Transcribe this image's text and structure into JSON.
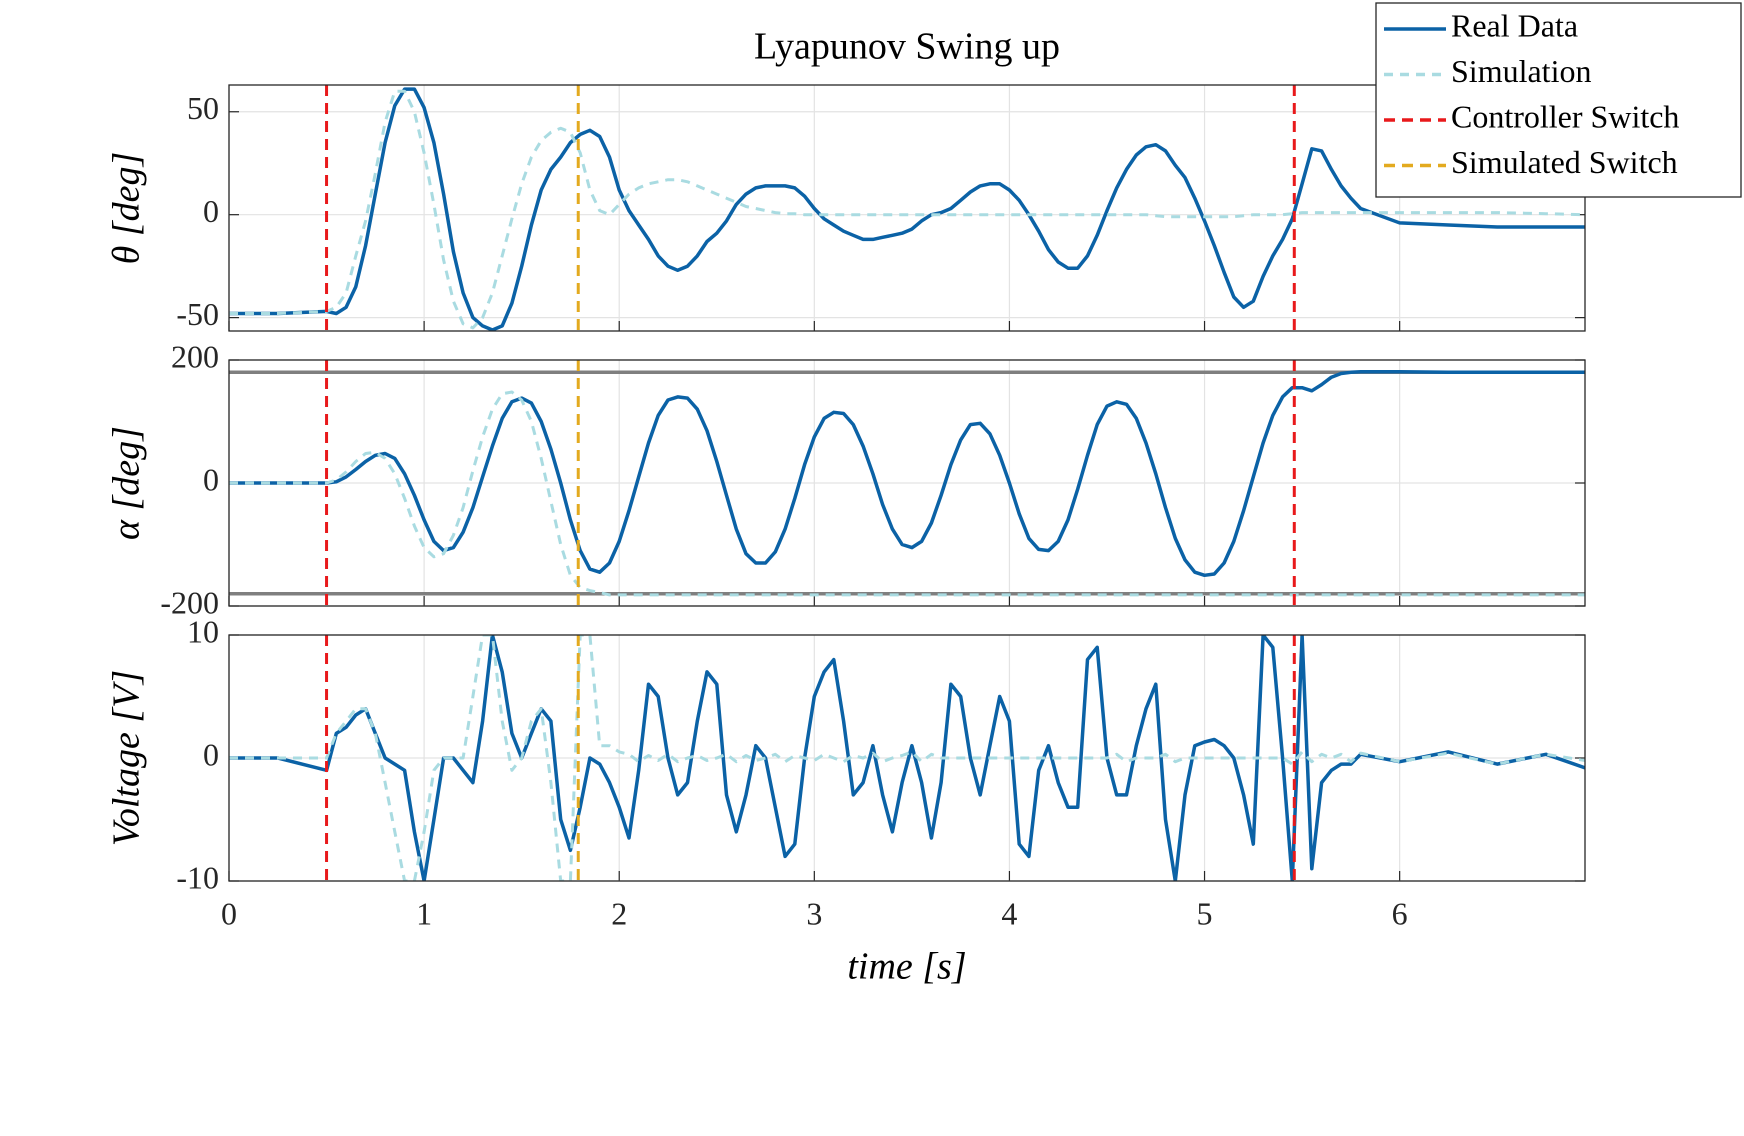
{
  "chart_data": [
    {
      "type": "line",
      "title": "Lyapunov Swing up",
      "ylabel": "θ [deg]",
      "x": [
        0,
        0.25,
        0.5,
        0.55,
        0.6,
        0.65,
        0.7,
        0.75,
        0.8,
        0.85,
        0.9,
        0.95,
        1.0,
        1.05,
        1.1,
        1.15,
        1.2,
        1.25,
        1.3,
        1.35,
        1.4,
        1.45,
        1.5,
        1.55,
        1.6,
        1.65,
        1.7,
        1.75,
        1.8,
        1.85,
        1.9,
        1.95,
        2.0,
        2.05,
        2.1,
        2.15,
        2.2,
        2.25,
        2.3,
        2.35,
        2.4,
        2.45,
        2.5,
        2.55,
        2.6,
        2.65,
        2.7,
        2.75,
        2.8,
        2.85,
        2.9,
        2.95,
        3.0,
        3.05,
        3.1,
        3.15,
        3.2,
        3.25,
        3.3,
        3.35,
        3.4,
        3.45,
        3.5,
        3.55,
        3.6,
        3.65,
        3.7,
        3.75,
        3.8,
        3.85,
        3.9,
        3.95,
        4.0,
        4.05,
        4.1,
        4.15,
        4.2,
        4.25,
        4.3,
        4.35,
        4.4,
        4.45,
        4.5,
        4.55,
        4.6,
        4.65,
        4.7,
        4.75,
        4.8,
        4.85,
        4.9,
        4.95,
        5.0,
        5.05,
        5.1,
        5.15,
        5.2,
        5.25,
        5.3,
        5.35,
        5.4,
        5.45,
        5.5,
        5.55,
        5.6,
        5.65,
        5.7,
        5.75,
        5.8,
        6.0,
        6.25,
        6.5,
        6.75,
        6.95
      ],
      "xlim": [
        0,
        6.95
      ],
      "xticks": [
        0,
        1,
        2,
        3,
        4,
        5,
        6
      ],
      "xtick_labels": false,
      "ylim": [
        -56.5,
        63
      ],
      "yticks": [
        -50,
        0,
        50
      ],
      "grid": true,
      "legend": "upper right",
      "series": [
        {
          "name": "Real Data",
          "color": "#0b62a6",
          "style": "solid",
          "values": [
            -48,
            -48,
            -47,
            -48,
            -45,
            -35,
            -15,
            10,
            35,
            53,
            61,
            61,
            52,
            35,
            10,
            -18,
            -38,
            -50,
            -54,
            -56,
            -54,
            -43,
            -25,
            -5,
            12,
            22,
            28,
            35,
            39,
            41,
            38,
            28,
            12,
            2,
            -5,
            -12,
            -20,
            -25,
            -27,
            -25,
            -20,
            -13,
            -9,
            -3,
            5,
            10,
            13,
            14,
            14,
            14,
            13,
            9,
            3,
            -2,
            -5,
            -8,
            -10,
            -12,
            -12,
            -11,
            -10,
            -9,
            -7,
            -3,
            0,
            1,
            3,
            7,
            11,
            14,
            15,
            15,
            12,
            7,
            0,
            -8,
            -17,
            -23,
            -26,
            -26,
            -20,
            -10,
            2,
            13,
            22,
            29,
            33,
            34,
            31,
            24,
            18,
            8,
            -3,
            -15,
            -28,
            -40,
            -45,
            -42,
            -30,
            -20,
            -12,
            -2,
            15,
            32,
            31,
            22,
            14,
            8,
            3,
            -4,
            -5,
            -6,
            -6,
            -6
          ]
        },
        {
          "name": "Simulation",
          "color": "#a9dbe1",
          "style": "dashed",
          "values": [
            -48,
            -48,
            -47,
            -45,
            -38,
            -20,
            -3,
            20,
            45,
            60,
            60,
            50,
            30,
            5,
            -22,
            -42,
            -53,
            -55,
            -50,
            -38,
            -20,
            -2,
            15,
            28,
            36,
            40,
            42,
            40,
            30,
            12,
            2,
            0,
            5,
            10,
            13,
            15,
            16,
            17,
            17,
            16,
            14,
            12,
            10,
            8,
            6,
            4,
            3,
            2,
            1,
            0.5,
            0.5,
            0,
            0,
            0,
            0,
            0,
            0,
            0,
            0,
            0,
            0,
            0,
            0,
            0,
            0,
            0,
            0,
            0,
            0,
            0,
            0,
            0,
            0,
            0,
            0,
            0,
            0,
            0,
            0,
            0,
            0,
            0,
            0,
            0,
            0,
            0,
            0,
            -0.5,
            -1,
            -1,
            -1,
            -1,
            -1,
            -1,
            -1,
            -1,
            -0.5,
            0,
            0,
            0,
            0,
            0.5,
            1,
            1,
            1,
            1,
            1,
            1,
            1,
            1,
            1,
            1,
            0.5,
            0
          ]
        }
      ],
      "vlines": [
        {
          "name": "Controller Switch",
          "color": "#e8191b",
          "x": [
            0.5,
            5.46
          ]
        },
        {
          "name": "Simulated Switch",
          "color": "#e3aa1f",
          "x": [
            1.79
          ]
        }
      ]
    },
    {
      "type": "line",
      "ylabel": "α [deg]",
      "x": [
        0,
        0.25,
        0.5,
        0.55,
        0.6,
        0.65,
        0.7,
        0.75,
        0.8,
        0.85,
        0.9,
        0.95,
        1.0,
        1.05,
        1.1,
        1.15,
        1.2,
        1.25,
        1.3,
        1.35,
        1.4,
        1.45,
        1.5,
        1.55,
        1.6,
        1.65,
        1.7,
        1.75,
        1.8,
        1.85,
        1.9,
        1.95,
        2.0,
        2.05,
        2.1,
        2.15,
        2.2,
        2.25,
        2.3,
        2.35,
        2.4,
        2.45,
        2.5,
        2.55,
        2.6,
        2.65,
        2.7,
        2.75,
        2.8,
        2.85,
        2.9,
        2.95,
        3.0,
        3.05,
        3.1,
        3.15,
        3.2,
        3.25,
        3.3,
        3.35,
        3.4,
        3.45,
        3.5,
        3.55,
        3.6,
        3.65,
        3.7,
        3.75,
        3.8,
        3.85,
        3.9,
        3.95,
        4.0,
        4.05,
        4.1,
        4.15,
        4.2,
        4.25,
        4.3,
        4.35,
        4.4,
        4.45,
        4.5,
        4.55,
        4.6,
        4.65,
        4.7,
        4.75,
        4.8,
        4.85,
        4.9,
        4.95,
        5.0,
        5.05,
        5.1,
        5.15,
        5.2,
        5.25,
        5.3,
        5.35,
        5.4,
        5.45,
        5.5,
        5.55,
        5.6,
        5.65,
        5.7,
        5.75,
        5.8,
        6.0,
        6.25,
        6.5,
        6.75,
        6.95
      ],
      "xlim": [
        0,
        6.95
      ],
      "xticks": [
        0,
        1,
        2,
        3,
        4,
        5,
        6
      ],
      "xtick_labels": false,
      "ylim": [
        -200,
        200
      ],
      "yticks": [
        -200,
        0,
        200
      ],
      "grid": true,
      "hlines": [
        180,
        -180
      ],
      "hline_color": "#7f7f7f",
      "series": [
        {
          "color": "#0b62a6",
          "style": "solid",
          "values": [
            0,
            0,
            0,
            2,
            10,
            22,
            35,
            45,
            48,
            40,
            15,
            -20,
            -60,
            -95,
            -110,
            -105,
            -80,
            -40,
            10,
            60,
            105,
            132,
            138,
            130,
            100,
            55,
            0,
            -60,
            -110,
            -140,
            -145,
            -130,
            -95,
            -45,
            10,
            65,
            110,
            135,
            140,
            138,
            120,
            85,
            35,
            -20,
            -75,
            -115,
            -130,
            -130,
            -112,
            -75,
            -25,
            30,
            75,
            105,
            115,
            113,
            95,
            60,
            15,
            -35,
            -75,
            -100,
            -105,
            -95,
            -65,
            -20,
            30,
            70,
            95,
            97,
            80,
            45,
            0,
            -50,
            -90,
            -108,
            -110,
            -95,
            -60,
            -10,
            45,
            95,
            125,
            132,
            128,
            105,
            65,
            15,
            -40,
            -90,
            -125,
            -145,
            -150,
            -148,
            -130,
            -95,
            -45,
            10,
            65,
            110,
            140,
            155,
            155,
            150,
            160,
            172,
            178,
            180,
            181,
            181,
            180,
            180,
            180,
            180
          ]
        },
        {
          "color": "#a9dbe1",
          "style": "dashed",
          "values": [
            0,
            0,
            0,
            5,
            18,
            35,
            48,
            50,
            40,
            15,
            -25,
            -70,
            -105,
            -120,
            -115,
            -85,
            -40,
            20,
            75,
            120,
            145,
            148,
            135,
            100,
            40,
            -30,
            -100,
            -150,
            -170,
            -175,
            -178,
            -182,
            -182,
            -182,
            -182,
            -182,
            -182,
            -182,
            -182,
            -182,
            -182,
            -182,
            -182,
            -182,
            -182,
            -182,
            -182,
            -182,
            -182,
            -182,
            -182,
            -182,
            -182,
            -182,
            -182,
            -182,
            -182,
            -182,
            -182,
            -182,
            -182,
            -182,
            -182,
            -182,
            -182,
            -182,
            -182,
            -182,
            -182,
            -182,
            -182,
            -182,
            -182,
            -182,
            -182,
            -182,
            -182,
            -182,
            -182,
            -182,
            -182,
            -182,
            -182,
            -182,
            -182,
            -182,
            -182,
            -182,
            -182,
            -182,
            -182,
            -182,
            -182,
            -182,
            -182,
            -182,
            -182,
            -182,
            -182,
            -182,
            -182,
            -182,
            -182,
            -182,
            -182,
            -182,
            -182,
            -182,
            -182,
            -182,
            -182,
            -182,
            -182,
            -182
          ]
        }
      ],
      "vlines": [
        {
          "color": "#e8191b",
          "x": [
            0.5,
            5.46
          ]
        },
        {
          "color": "#e3aa1f",
          "x": [
            1.79
          ]
        }
      ]
    },
    {
      "type": "line",
      "ylabel": "Voltage [V]",
      "xlabel": "time [s]",
      "x": [
        0,
        0.25,
        0.5,
        0.55,
        0.6,
        0.65,
        0.7,
        0.75,
        0.8,
        0.85,
        0.9,
        0.95,
        1.0,
        1.05,
        1.1,
        1.15,
        1.2,
        1.25,
        1.3,
        1.35,
        1.4,
        1.45,
        1.5,
        1.55,
        1.6,
        1.65,
        1.7,
        1.75,
        1.8,
        1.85,
        1.9,
        1.95,
        2.0,
        2.05,
        2.1,
        2.15,
        2.2,
        2.25,
        2.3,
        2.35,
        2.4,
        2.45,
        2.5,
        2.55,
        2.6,
        2.65,
        2.7,
        2.75,
        2.8,
        2.85,
        2.9,
        2.95,
        3.0,
        3.05,
        3.1,
        3.15,
        3.2,
        3.25,
        3.3,
        3.35,
        3.4,
        3.45,
        3.5,
        3.55,
        3.6,
        3.65,
        3.7,
        3.75,
        3.8,
        3.85,
        3.9,
        3.95,
        4.0,
        4.05,
        4.1,
        4.15,
        4.2,
        4.25,
        4.3,
        4.35,
        4.4,
        4.45,
        4.5,
        4.55,
        4.6,
        4.65,
        4.7,
        4.75,
        4.8,
        4.85,
        4.9,
        4.95,
        5.0,
        5.05,
        5.1,
        5.15,
        5.2,
        5.25,
        5.3,
        5.35,
        5.4,
        5.45,
        5.5,
        5.55,
        5.6,
        5.65,
        5.7,
        5.75,
        5.8,
        6.0,
        6.25,
        6.5,
        6.75,
        6.95
      ],
      "xlim": [
        0,
        6.95
      ],
      "xticks": [
        0,
        1,
        2,
        3,
        4,
        5,
        6
      ],
      "ylim": [
        -10,
        10
      ],
      "yticks": [
        -10,
        0,
        10
      ],
      "grid": true,
      "series": [
        {
          "color": "#0b62a6",
          "style": "solid",
          "values": [
            0,
            0,
            -1,
            2,
            2.5,
            3.5,
            4,
            2,
            0,
            -0.5,
            -1,
            -6,
            -10,
            -5,
            0,
            0,
            -1,
            -2,
            3,
            10,
            7,
            2,
            0,
            2,
            4,
            3,
            -5,
            -7.5,
            -4,
            0,
            -0.5,
            -2,
            -4,
            -6.5,
            -1,
            6,
            5,
            0,
            -3,
            -2,
            3,
            7,
            6,
            -3,
            -6,
            -3,
            1,
            0,
            -4,
            -8,
            -7,
            0,
            5,
            7,
            8,
            3,
            -3,
            -2,
            1,
            -3,
            -6,
            -2,
            1,
            -2,
            -6.5,
            -2,
            6,
            5,
            0,
            -3,
            1,
            5,
            3,
            -7,
            -8,
            -1,
            1,
            -2,
            -4,
            -4,
            8,
            9,
            0,
            -3,
            -3,
            1,
            4,
            6,
            -5,
            -10,
            -3,
            1,
            1.3,
            1.5,
            1,
            0,
            -3,
            -7,
            10,
            9,
            0,
            -10,
            10,
            -9,
            -2,
            -1,
            -0.5,
            -0.5,
            0.3,
            -0.3,
            0.5,
            -0.5,
            0.3,
            -0.8
          ]
        },
        {
          "color": "#a9dbe1",
          "style": "dashed",
          "values": [
            0,
            0,
            0,
            2,
            3,
            4,
            4,
            2,
            -2,
            -6,
            -10,
            -10,
            -6,
            -1,
            0,
            0,
            0,
            5,
            10,
            10,
            3,
            -1,
            0,
            3,
            4,
            -2,
            -10,
            -10,
            10,
            10,
            1,
            1,
            0.5,
            0.3,
            -0.3,
            0.2,
            -0.2,
            0.3,
            -0.3,
            0,
            0.2,
            -0.2,
            0,
            0.3,
            -0.3,
            0.2,
            -0.2,
            0,
            0.3,
            -0.3,
            0.2,
            0,
            -0.2,
            0.3,
            0,
            -0.3,
            0.2,
            0,
            0.4,
            -0.3,
            0,
            0.2,
            0.5,
            -0.3,
            0.3,
            0,
            0,
            0,
            0,
            0,
            0,
            0,
            0,
            0,
            0,
            0,
            0,
            0,
            0,
            0,
            0,
            0,
            0,
            0.3,
            -0.3,
            0,
            0,
            0,
            0.3,
            -0.3,
            0,
            0,
            0,
            0,
            0,
            0,
            0,
            0,
            0,
            0,
            0,
            -0.5,
            0.5,
            -0.3,
            0.3,
            0,
            0.3,
            -0.3,
            0.4,
            -0.3,
            0.4,
            -0.5,
            0.3,
            -0.2
          ]
        }
      ],
      "vlines": [
        {
          "color": "#e8191b",
          "x": [
            0.5,
            5.46
          ]
        },
        {
          "color": "#e3aa1f",
          "x": [
            1.79
          ]
        }
      ]
    }
  ]
}
